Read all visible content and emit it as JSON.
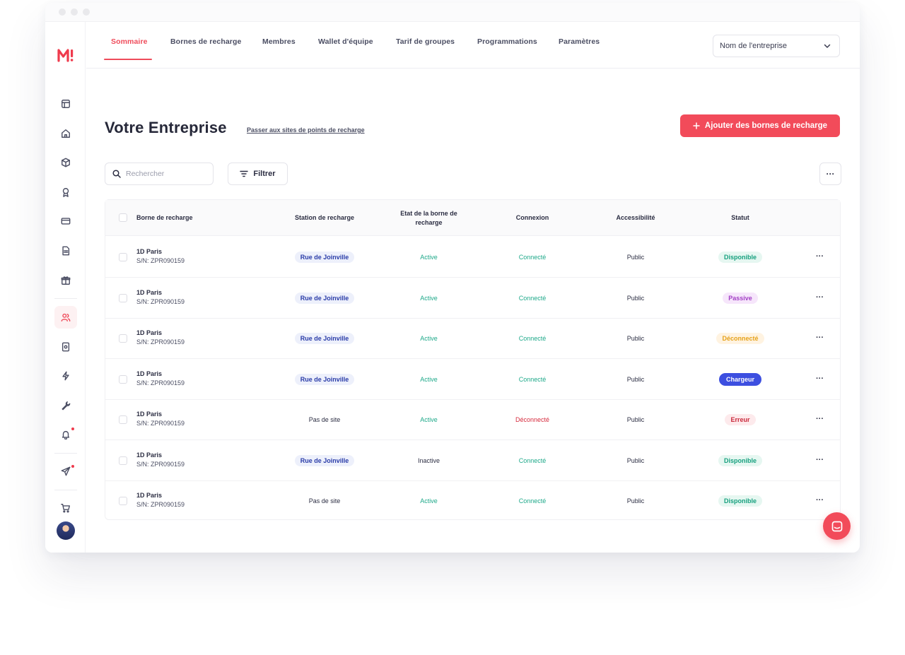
{
  "nav": {
    "tabs": [
      {
        "label": "Sommaire"
      },
      {
        "label": "Bornes de recharge"
      },
      {
        "label": "Membres"
      },
      {
        "label": "Wallet d'équipe"
      },
      {
        "label": "Tarif de groupes"
      },
      {
        "label": "Programmations"
      },
      {
        "label": "Paramètres"
      }
    ],
    "company_select": "Nom de l'entreprise"
  },
  "logo_text": "M!",
  "header": {
    "title": "Votre Entreprise",
    "link": "Passer aux sites de points de recharge",
    "add_button": "Ajouter des bornes de recharge"
  },
  "toolbar": {
    "search_placeholder": "Rechercher",
    "filter_label": "Filtrer",
    "more_label": "···"
  },
  "table": {
    "columns": {
      "borne": "Borne de recharge",
      "station": "Station de recharge",
      "etat": "Etat de la borne de recharge",
      "connexion": "Connexion",
      "access": "Accessibilité",
      "statut": "Statut"
    },
    "rows": [
      {
        "name": "1D Paris",
        "serial": "S/N: ZPR090159",
        "station": "Rue de Joinville",
        "station_pill": true,
        "etat": "Active",
        "connexion": "Connecté",
        "access": "Public",
        "statut": "Disponible",
        "more": "···"
      },
      {
        "name": "1D Paris",
        "serial": "S/N: ZPR090159",
        "station": "Rue de Joinville",
        "station_pill": true,
        "etat": "Active",
        "connexion": "Connecté",
        "access": "Public",
        "statut": "Passive",
        "more": "···"
      },
      {
        "name": "1D Paris",
        "serial": "S/N: ZPR090159",
        "station": "Rue de Joinville",
        "station_pill": true,
        "etat": "Active",
        "connexion": "Connecté",
        "access": "Public",
        "statut": "Déconnecté",
        "more": "···"
      },
      {
        "name": "1D Paris",
        "serial": "S/N: ZPR090159",
        "station": "Rue de Joinville",
        "station_pill": true,
        "etat": "Active",
        "connexion": "Connecté",
        "access": "Public",
        "statut": "Chargeur",
        "more": "···"
      },
      {
        "name": "1D Paris",
        "serial": "S/N: ZPR090159",
        "station": "Pas de site",
        "station_pill": false,
        "etat": "Active",
        "connexion": "Déconnecté",
        "access": "Public",
        "statut": "Erreur",
        "more": "···"
      },
      {
        "name": "1D Paris",
        "serial": "S/N: ZPR090159",
        "station": "Rue de Joinville",
        "station_pill": true,
        "etat": "Inactive",
        "connexion": "Connecté",
        "access": "Public",
        "statut": "Disponible",
        "more": "···"
      },
      {
        "name": "1D Paris",
        "serial": "S/N: ZPR090159",
        "station": "Pas de site",
        "station_pill": false,
        "etat": "Active",
        "connexion": "Connecté",
        "access": "Public",
        "statut": "Disponible",
        "more": "···"
      }
    ]
  },
  "colors": {
    "accent": "#f24b5a",
    "green_text": "#1fa98a",
    "red_text": "#d62b3d",
    "status": {
      "Disponible": {
        "bg": "#e6f7f1",
        "fg": "#16a07e"
      },
      "Passive": {
        "bg": "#f6e6fb",
        "fg": "#a23ec4"
      },
      "Déconnecté": {
        "bg": "#fff3e1",
        "fg": "#e6a21a"
      },
      "Chargeur": {
        "bg": "#3d4fe0",
        "fg": "#ffffff"
      },
      "Erreur": {
        "bg": "#fdeaec",
        "fg": "#c92a3c"
      }
    },
    "station_pill": {
      "bg": "#edf0fb",
      "fg": "#2a3ca8"
    }
  },
  "sidebar_icons": [
    "layout-icon",
    "home-icon",
    "box-icon",
    "award-icon",
    "card-icon",
    "document-icon",
    "gift-icon",
    "users-icon",
    "badge-icon",
    "bolt-icon",
    "wrench-icon",
    "bell-icon",
    "send-icon",
    "cart-icon"
  ]
}
